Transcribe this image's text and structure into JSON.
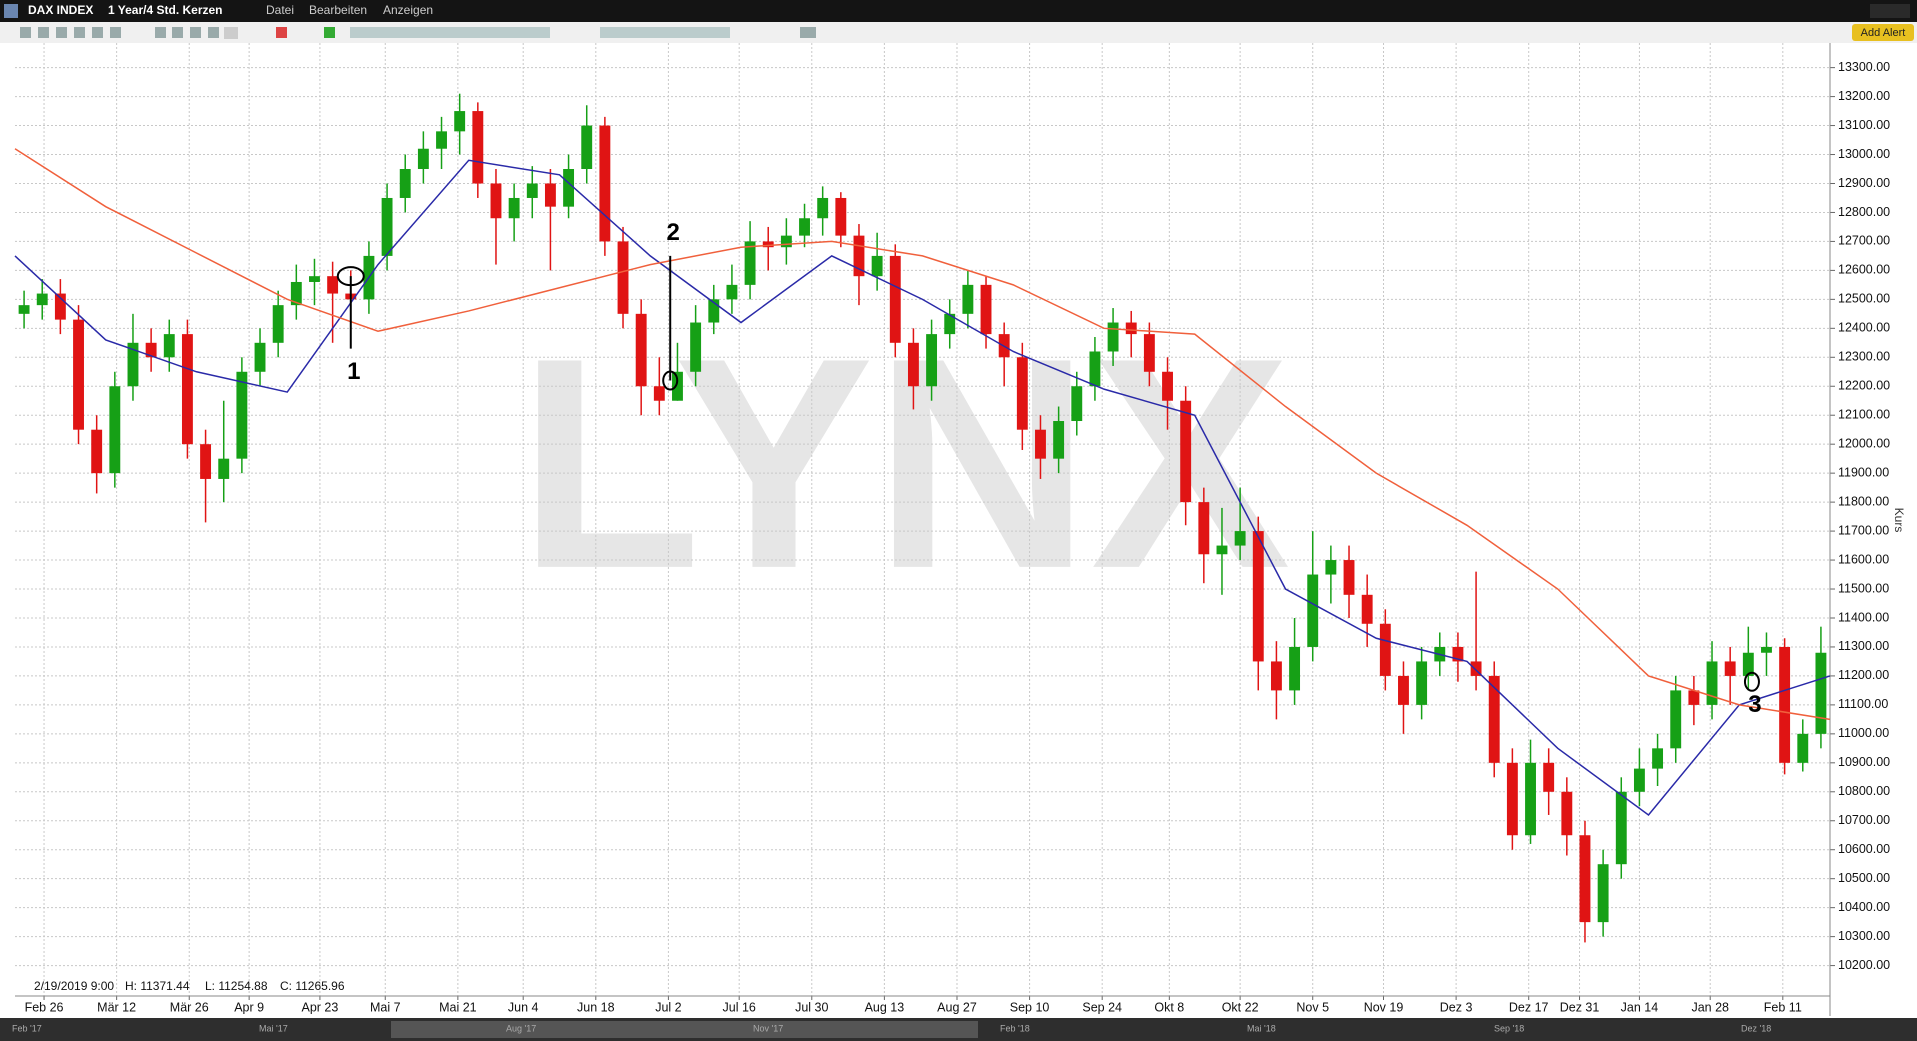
{
  "window": {
    "title": "DAX INDEX",
    "timeframe": "1 Year/4 Std. Kerzen",
    "menu": [
      "Datei",
      "Bearbeiten",
      "Anzeigen"
    ],
    "button": "Add Alert"
  },
  "chart_data": {
    "type": "candlestick",
    "watermark": "LYNX",
    "y_axis_label": "Kurs",
    "info": {
      "date": "2/19/2019 9:00",
      "high": "H: 11371.44",
      "low": "L: 11254.88",
      "close": "C: 11265.96"
    },
    "up_color": "#16a016",
    "down_color": "#e01414",
    "grid": true,
    "xlim": [
      0,
      100
    ],
    "ylim": [
      10095,
      13385
    ],
    "xticks": [
      {
        "value": 1.6,
        "label": "Feb 26"
      },
      {
        "value": 5.6,
        "label": "Mär 12"
      },
      {
        "value": 9.6,
        "label": "Mär 26"
      },
      {
        "value": 12.9,
        "label": "Apr 9"
      },
      {
        "value": 16.8,
        "label": "Apr 23"
      },
      {
        "value": 20.4,
        "label": "Mai 7"
      },
      {
        "value": 24.4,
        "label": "Mai 21"
      },
      {
        "value": 28,
        "label": "Jun 4"
      },
      {
        "value": 32,
        "label": "Jun 18"
      },
      {
        "value": 36,
        "label": "Jul 2"
      },
      {
        "value": 39.9,
        "label": "Jul 16"
      },
      {
        "value": 43.9,
        "label": "Jul 30"
      },
      {
        "value": 47.9,
        "label": "Aug 13"
      },
      {
        "value": 51.9,
        "label": "Aug 27"
      },
      {
        "value": 55.9,
        "label": "Sep 10"
      },
      {
        "value": 59.9,
        "label": "Sep 24"
      },
      {
        "value": 63.6,
        "label": "Okt 8"
      },
      {
        "value": 67.5,
        "label": "Okt 22"
      },
      {
        "value": 71.5,
        "label": "Nov 5"
      },
      {
        "value": 75.4,
        "label": "Nov 19"
      },
      {
        "value": 79.4,
        "label": "Dez 3"
      },
      {
        "value": 83.4,
        "label": "Dez 17"
      },
      {
        "value": 86.2,
        "label": "Dez 31"
      },
      {
        "value": 89.5,
        "label": "Jan 14"
      },
      {
        "value": 93.4,
        "label": "Jan 28"
      },
      {
        "value": 97.4,
        "label": "Feb 11"
      }
    ],
    "yticks": [
      {
        "value": 10200,
        "label": "10200.00"
      },
      {
        "value": 10300,
        "label": "10300.00"
      },
      {
        "value": 10400,
        "label": "10400.00"
      },
      {
        "value": 10500,
        "label": "10500.00"
      },
      {
        "value": 10600,
        "label": "10600.00"
      },
      {
        "value": 10700,
        "label": "10700.00"
      },
      {
        "value": 10800,
        "label": "10800.00"
      },
      {
        "value": 10900,
        "label": "10900.00"
      },
      {
        "value": 11000,
        "label": "11000.00"
      },
      {
        "value": 11100,
        "label": "11100.00"
      },
      {
        "value": 11200,
        "label": "11200.00"
      },
      {
        "value": 11300,
        "label": "11300.00"
      },
      {
        "value": 11400,
        "label": "11400.00"
      },
      {
        "value": 11500,
        "label": "11500.00"
      },
      {
        "value": 11600,
        "label": "11600.00"
      },
      {
        "value": 11700,
        "label": "11700.00"
      },
      {
        "value": 11800,
        "label": "11800.00"
      },
      {
        "value": 11900,
        "label": "11900.00"
      },
      {
        "value": 12000,
        "label": "12000.00"
      },
      {
        "value": 12100,
        "label": "12100.00"
      },
      {
        "value": 12200,
        "label": "12200.00"
      },
      {
        "value": 12300,
        "label": "12300.00"
      },
      {
        "value": 12400,
        "label": "12400.00"
      },
      {
        "value": 12500,
        "label": "12500.00"
      },
      {
        "value": 12600,
        "label": "12600.00"
      },
      {
        "value": 12700,
        "label": "12700.00"
      },
      {
        "value": 12800,
        "label": "12800.00"
      },
      {
        "value": 12900,
        "label": "12900.00"
      },
      {
        "value": 13000,
        "label": "13000.00"
      },
      {
        "value": 13100,
        "label": "13100.00"
      },
      {
        "value": 13200,
        "label": "13200.00"
      },
      {
        "value": 13300,
        "label": "13300.00"
      }
    ],
    "open": [
      12450,
      12480,
      12520,
      12430,
      12050,
      11900,
      12200,
      12350,
      12300,
      12380,
      12000,
      11880,
      11950,
      12250,
      12350,
      12480,
      12560,
      12580,
      12520,
      12500,
      12650,
      12850,
      12950,
      13020,
      13080,
      13150,
      12900,
      12780,
      12850,
      12900,
      12820,
      12950,
      13100,
      12700,
      12450,
      12200,
      12150,
      12250,
      12420,
      12500,
      12550,
      12700,
      12680,
      12720,
      12780,
      12850,
      12720,
      12580,
      12650,
      12350,
      12200,
      12380,
      12450,
      12550,
      12380,
      12300,
      12050,
      11950,
      12080,
      12200,
      12320,
      12420,
      12380,
      12250,
      12150,
      11800,
      11620,
      11650,
      11700,
      11250,
      11150,
      11300,
      11550,
      11600,
      11480,
      11380,
      11200,
      11100,
      11250,
      11300,
      11250,
      11200,
      10900,
      10650,
      10900,
      10800,
      10650,
      10350,
      10550,
      10800,
      10880,
      10950,
      11150,
      11100,
      11250,
      11200,
      11280,
      11300,
      10900,
      11000
    ],
    "high": [
      12530,
      12570,
      12570,
      12480,
      12100,
      12250,
      12450,
      12400,
      12430,
      12430,
      12050,
      12150,
      12300,
      12400,
      12530,
      12620,
      12640,
      12630,
      12600,
      12700,
      12900,
      13000,
      13080,
      13130,
      13210,
      13180,
      12950,
      12900,
      12960,
      12950,
      13000,
      13170,
      13130,
      12750,
      12500,
      12300,
      12350,
      12480,
      12550,
      12620,
      12770,
      12750,
      12780,
      12830,
      12890,
      12870,
      12760,
      12730,
      12690,
      12400,
      12430,
      12500,
      12600,
      12580,
      12420,
      12350,
      12100,
      12130,
      12250,
      12370,
      12470,
      12460,
      12420,
      12300,
      12200,
      11850,
      11780,
      11850,
      11750,
      11320,
      11400,
      11700,
      11650,
      11650,
      11550,
      11430,
      11250,
      11300,
      11350,
      11350,
      11560,
      11250,
      10950,
      10980,
      10950,
      10850,
      10700,
      10600,
      10850,
      10950,
      11000,
      11200,
      11200,
      11320,
      11300,
      11370,
      11350,
      11330,
      11050,
      11370
    ],
    "low": [
      12400,
      12430,
      12380,
      12000,
      11830,
      11850,
      12150,
      12250,
      12250,
      11950,
      11730,
      11800,
      11900,
      12200,
      12300,
      12430,
      12480,
      12350,
      12420,
      12450,
      12600,
      12800,
      12900,
      12950,
      13000,
      12850,
      12620,
      12700,
      12780,
      12600,
      12780,
      12900,
      12650,
      12400,
      12100,
      12100,
      12150,
      12200,
      12380,
      12450,
      12500,
      12600,
      12620,
      12680,
      12720,
      12680,
      12480,
      12530,
      12300,
      12120,
      12150,
      12330,
      12400,
      12330,
      12200,
      11980,
      11880,
      11900,
      12030,
      12150,
      12270,
      12300,
      12200,
      12050,
      11720,
      11520,
      11480,
      11600,
      11150,
      11050,
      11100,
      11250,
      11450,
      11400,
      11300,
      11150,
      11000,
      11050,
      11200,
      11180,
      11150,
      10850,
      10600,
      10620,
      10720,
      10580,
      10280,
      10300,
      10500,
      10750,
      10820,
      10900,
      11030,
      11050,
      11100,
      11150,
      11200,
      10860,
      10870,
      10950
    ],
    "close": [
      12480,
      12520,
      12430,
      12050,
      11900,
      12200,
      12350,
      12300,
      12380,
      12000,
      11880,
      11950,
      12250,
      12350,
      12480,
      12560,
      12580,
      12520,
      12500,
      12650,
      12850,
      12950,
      13020,
      13080,
      13150,
      12900,
      12780,
      12850,
      12900,
      12820,
      12950,
      13100,
      12700,
      12450,
      12200,
      12150,
      12250,
      12420,
      12500,
      12550,
      12700,
      12680,
      12720,
      12780,
      12850,
      12720,
      12580,
      12650,
      12350,
      12200,
      12380,
      12450,
      12550,
      12380,
      12300,
      12050,
      11950,
      12080,
      12200,
      12320,
      12420,
      12380,
      12250,
      12150,
      11800,
      11620,
      11650,
      11700,
      11250,
      11150,
      11300,
      11550,
      11600,
      11480,
      11380,
      11200,
      11100,
      11250,
      11300,
      11250,
      11200,
      10900,
      10650,
      10900,
      10800,
      10650,
      10350,
      10550,
      10800,
      10880,
      10950,
      11150,
      11100,
      11250,
      11200,
      11280,
      11300,
      10900,
      11000,
      11280
    ],
    "overlays": [
      {
        "color": "#2a2aa8",
        "x": [
          0,
          5,
          10,
          15,
          20,
          25,
          30,
          35,
          40,
          45,
          50,
          55,
          60,
          65,
          70,
          75,
          80,
          85,
          90,
          95,
          100
        ],
        "values": [
          12650,
          12360,
          12250,
          12180,
          12620,
          12980,
          12930,
          12650,
          12420,
          12650,
          12500,
          12320,
          12190,
          12100,
          11500,
          11330,
          11250,
          10950,
          10720,
          11100,
          11200
        ]
      },
      {
        "color": "#f0603c",
        "x": [
          0,
          5,
          10,
          15,
          20,
          25,
          30,
          35,
          40,
          45,
          50,
          55,
          60,
          65,
          70,
          75,
          80,
          85,
          90,
          95,
          100
        ],
        "values": [
          13020,
          12820,
          12660,
          12500,
          12390,
          12460,
          12540,
          12620,
          12680,
          12700,
          12650,
          12550,
          12400,
          12380,
          12130,
          11900,
          11720,
          11500,
          11200,
          11100,
          11050
        ]
      }
    ],
    "annotations": [
      {
        "text": "1",
        "x": 18.5,
        "circle": 12580,
        "line": [
          12580,
          12330
        ],
        "label": "below"
      },
      {
        "text": "2",
        "x": 36.1,
        "circle": 12220,
        "line": [
          12650,
          12220
        ],
        "label": "above"
      },
      {
        "text": "3",
        "x": 95.7,
        "circle": 11180,
        "label": "below"
      }
    ]
  },
  "navigator": {
    "labels": [
      "Feb '17",
      "Mai '17",
      "Aug '17",
      "Nov '17",
      "Feb '18",
      "Mai '18",
      "Sep '18",
      "Dez '18"
    ]
  }
}
